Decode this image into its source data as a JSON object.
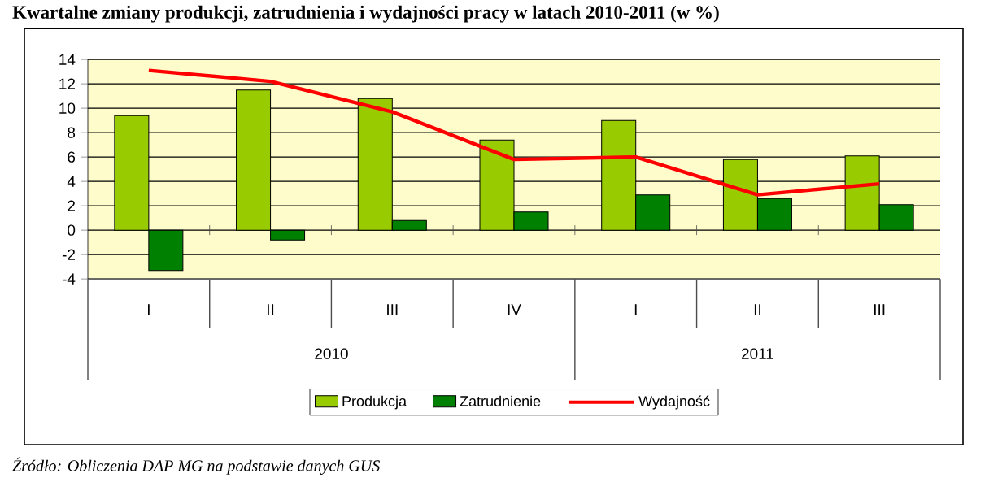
{
  "chart_data": {
    "type": "bar",
    "title": "Kwartalne zmiany produkcji, zatrudnienia i wydajności pracy w latach 2010-2011 (w %)",
    "categories": [
      "I",
      "II",
      "III",
      "IV",
      "I",
      "II",
      "III"
    ],
    "series": [
      {
        "name": "Produkcja",
        "color": "#99cc00",
        "values": [
          9.4,
          11.5,
          10.8,
          7.4,
          9.0,
          5.8,
          6.1
        ]
      },
      {
        "name": "Zatrudnienie",
        "color": "#008000",
        "values": [
          -3.3,
          -0.8,
          0.8,
          1.5,
          2.9,
          2.6,
          2.1
        ]
      },
      {
        "name": "Wydajność",
        "type": "line",
        "color": "#ff0000",
        "values": [
          13.1,
          12.2,
          9.7,
          5.8,
          6.0,
          2.9,
          3.8
        ]
      }
    ],
    "ylim": [
      -4,
      14
    ],
    "yticks": [
      -4,
      -2,
      0,
      2,
      4,
      6,
      8,
      10,
      12,
      14
    ],
    "grid": "y",
    "legend": "bottom",
    "marker": "none",
    "line_style": "solid",
    "annotations": [
      "2010",
      "2011",
      "Źródło: Obliczenia DAP MG na podstawie danych GUS"
    ]
  }
}
